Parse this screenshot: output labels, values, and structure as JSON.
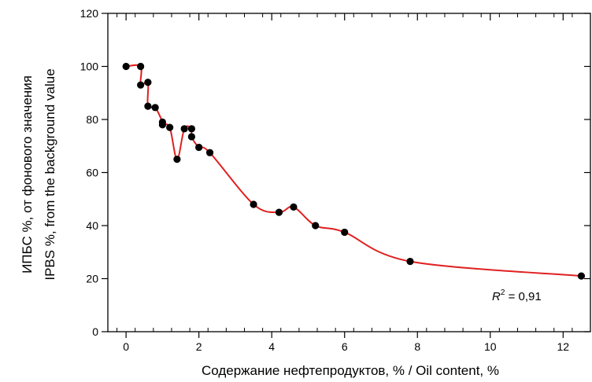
{
  "chart_data": {
    "type": "scatter",
    "title": "",
    "xlabel": "Содержание нефтепродуктов, % /  Oil content, %",
    "ylabel_lines": [
      "ИПБС %, от фонового значения",
      "IPBS %, from the background value"
    ],
    "xlim": [
      -0.5,
      12.75
    ],
    "ylim": [
      0,
      120
    ],
    "x_ticks": [
      0,
      2,
      4,
      6,
      8,
      10,
      12
    ],
    "y_ticks": [
      0,
      20,
      40,
      60,
      80,
      100,
      120
    ],
    "x_tick_labels": [
      "0",
      "2",
      "4",
      "6",
      "8",
      "10",
      "12"
    ],
    "y_tick_labels": [
      "0",
      "20",
      "40",
      "60",
      "80",
      "100",
      "120"
    ],
    "grid": false,
    "annotation": {
      "base": "R",
      "sup": "2",
      "rest": " = 0,91"
    },
    "series": [
      {
        "points": [
          [
            0,
            100
          ],
          [
            0.4,
            100
          ],
          [
            0.4,
            93
          ],
          [
            0.6,
            94
          ],
          [
            0.6,
            85
          ],
          [
            0.8,
            84.5
          ],
          [
            1.0,
            79
          ],
          [
            1.0,
            78
          ],
          [
            1.2,
            77
          ],
          [
            1.4,
            65
          ],
          [
            1.6,
            76.5
          ],
          [
            1.8,
            76.5
          ],
          [
            1.8,
            73.5
          ],
          [
            2.0,
            69.5
          ],
          [
            2.3,
            67.5
          ],
          [
            3.5,
            48
          ],
          [
            4.2,
            45
          ],
          [
            4.6,
            47
          ],
          [
            5.2,
            40
          ],
          [
            6.0,
            37.5
          ],
          [
            7.8,
            26.5
          ],
          [
            12.5,
            21
          ]
        ]
      }
    ],
    "colors": {
      "curve": "#e02020",
      "points": "#000000",
      "axis": "#000000"
    }
  }
}
